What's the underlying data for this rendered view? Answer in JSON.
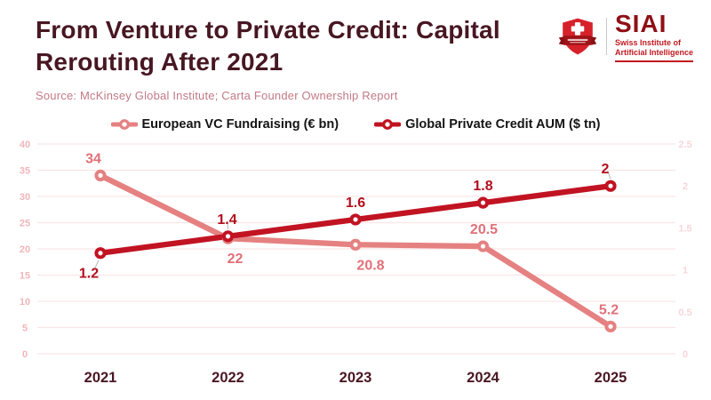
{
  "header": {
    "title_line1": "From Venture to Private Credit: Capital",
    "title_line2": "Rerouting After 2021",
    "source": "Source: McKinsey Global Institute; Carta Founder Ownership Report"
  },
  "logo": {
    "acronym": "SIAI",
    "name_line1": "Swiss Institute of",
    "name_line2": "Artificial Intelligence",
    "shield_color": "#d7212a",
    "ribbon_color": "#9e1317",
    "wing_color": "#8a1014"
  },
  "chart_data": {
    "type": "line",
    "title": "From Venture to Private Credit: Capital Rerouting After 2021",
    "xlabel": "",
    "categories": [
      "2021",
      "2022",
      "2023",
      "2024",
      "2025"
    ],
    "series": [
      {
        "name": "European VC Fundraising (€ bn)",
        "axis": "left",
        "color": "#e58181",
        "label_color": "#e17078",
        "values": [
          34,
          22,
          20.8,
          20.5,
          5.2
        ],
        "labels": [
          "34",
          "22",
          "20.8",
          "20.5",
          "5.2"
        ],
        "label_positions": [
          "above",
          "below",
          "below",
          "above",
          "above"
        ],
        "label_dx": [
          -8,
          8,
          17,
          1,
          -2
        ],
        "leader": [
          false,
          false,
          false,
          false,
          false
        ]
      },
      {
        "name": "Global Private Credit AUM ($ tn)",
        "axis": "right",
        "color": "#c11322",
        "label_color": "#b30e1d",
        "values": [
          1.2,
          1.4,
          1.6,
          1.8,
          2
        ],
        "labels": [
          "1.2",
          "1.4",
          "1.6",
          "1.8",
          "2"
        ],
        "label_positions": [
          "below",
          "above",
          "above",
          "above",
          "above"
        ],
        "label_dx": [
          -13,
          -1,
          0,
          0,
          -6
        ],
        "leader": [
          true,
          true,
          false,
          false,
          true
        ]
      }
    ],
    "left_axis": {
      "min": 0,
      "max": 40,
      "ticks": [
        0,
        5,
        10,
        15,
        20,
        25,
        30,
        35,
        40
      ],
      "tick_color": "#f2b6ba"
    },
    "right_axis": {
      "min": 0,
      "max": 2.5,
      "ticks": [
        0,
        0.5,
        1,
        1.5,
        2,
        2.5
      ],
      "tick_color": "#f8d7d9"
    },
    "grid": true,
    "grid_color": "#fae5e6",
    "legend_position": "top",
    "category_label_color": "#4a1722",
    "leader_color": "#b5b5b5"
  }
}
